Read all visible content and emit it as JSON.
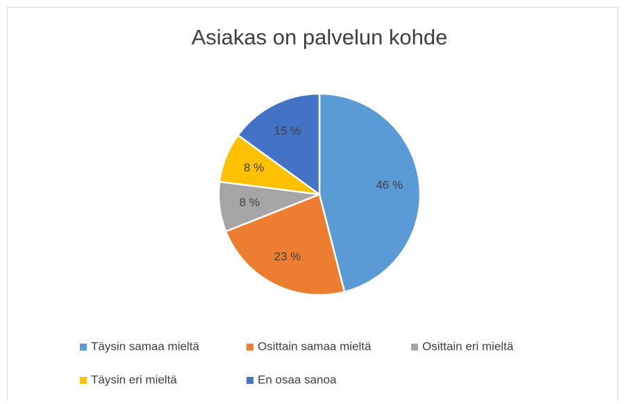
{
  "chart_data": {
    "type": "pie",
    "title": "Asiakas on palvelun kohde",
    "categories": [
      "Täysin samaa mieltä",
      "Osittain samaa mieltä",
      "Osittain eri mieltä",
      "Täysin eri mieltä",
      "En osaa sanoa"
    ],
    "values": [
      46,
      23,
      8,
      8,
      15
    ],
    "value_labels": [
      "46 %",
      "23 %",
      "8 %",
      "8 %",
      "15 %"
    ],
    "colors": [
      "#5B9BD5",
      "#ED7D31",
      "#A5A5A5",
      "#FFC000",
      "#4472C4"
    ],
    "legend": "bottom"
  }
}
